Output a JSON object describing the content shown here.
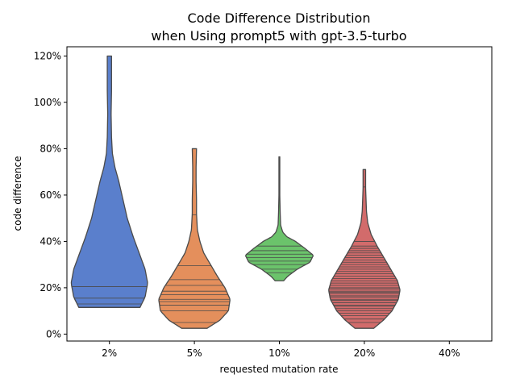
{
  "chart_data": {
    "type": "violin",
    "title_line1": "Code Difference Distribution",
    "title_line2": "when Using prompt5 with gpt-3.5-turbo",
    "xlabel": "requested mutation rate",
    "ylabel": "code difference",
    "categories": [
      "2%",
      "5%",
      "10%",
      "20%",
      "40%"
    ],
    "yticks": [
      "0%",
      "20%",
      "40%",
      "60%",
      "80%",
      "100%",
      "120%"
    ],
    "ylim": [
      -3,
      124
    ],
    "grid": false,
    "series": [
      {
        "category": "2%",
        "color": "#5a7fcc",
        "min": 11.5,
        "max": 120,
        "profile": [
          [
            11.5,
            0.72
          ],
          [
            16,
            0.84
          ],
          [
            22,
            0.9
          ],
          [
            28,
            0.84
          ],
          [
            34,
            0.72
          ],
          [
            42,
            0.56
          ],
          [
            50,
            0.42
          ],
          [
            58,
            0.32
          ],
          [
            66,
            0.22
          ],
          [
            72,
            0.13
          ],
          [
            78,
            0.07
          ],
          [
            85,
            0.05
          ],
          [
            95,
            0.04
          ],
          [
            105,
            0.05
          ],
          [
            112,
            0.05
          ],
          [
            120,
            0.05
          ]
        ],
        "observations": [
          11.5,
          13,
          15.5,
          20.5
        ]
      },
      {
        "category": "5%",
        "color": "#e48f5c",
        "min": 2.5,
        "max": 80,
        "profile": [
          [
            2.5,
            0.3
          ],
          [
            6,
            0.6
          ],
          [
            10,
            0.8
          ],
          [
            15,
            0.84
          ],
          [
            20,
            0.72
          ],
          [
            25,
            0.54
          ],
          [
            30,
            0.38
          ],
          [
            35,
            0.22
          ],
          [
            40,
            0.13
          ],
          [
            45,
            0.07
          ],
          [
            52,
            0.05
          ],
          [
            58,
            0.05
          ],
          [
            66,
            0.04
          ],
          [
            72,
            0.04
          ],
          [
            80,
            0.05
          ]
        ],
        "observations": [
          5,
          10,
          12.5,
          14,
          15,
          17,
          18.5,
          21,
          23.5,
          29.5,
          51.5
        ]
      },
      {
        "category": "10%",
        "color": "#6bc36b",
        "min": 23,
        "max": 76.5,
        "profile": [
          [
            23,
            0.1
          ],
          [
            25,
            0.2
          ],
          [
            28,
            0.42
          ],
          [
            31,
            0.72
          ],
          [
            34,
            0.8
          ],
          [
            37,
            0.6
          ],
          [
            40,
            0.38
          ],
          [
            42,
            0.18
          ],
          [
            44,
            0.08
          ],
          [
            47,
            0.03
          ],
          [
            52,
            0.02
          ],
          [
            60,
            0.01
          ],
          [
            70,
            0.01
          ],
          [
            76.5,
            0.01
          ]
        ],
        "observations": [
          26.5,
          28,
          30,
          31.5,
          33,
          34.5,
          36,
          38
        ]
      },
      {
        "category": "20%",
        "color": "#d26b6b",
        "min": 2.5,
        "max": 71,
        "profile": [
          [
            2.5,
            0.22
          ],
          [
            6,
            0.45
          ],
          [
            10,
            0.65
          ],
          [
            15,
            0.8
          ],
          [
            19,
            0.84
          ],
          [
            23,
            0.78
          ],
          [
            28,
            0.62
          ],
          [
            33,
            0.46
          ],
          [
            38,
            0.3
          ],
          [
            43,
            0.16
          ],
          [
            48,
            0.08
          ],
          [
            53,
            0.05
          ],
          [
            58,
            0.04
          ],
          [
            63,
            0.03
          ],
          [
            67,
            0.03
          ],
          [
            71,
            0.03
          ]
        ],
        "observations": [
          5,
          6.5,
          8,
          9,
          10,
          11,
          12,
          12.5,
          13.5,
          14.5,
          15,
          16,
          16.5,
          17.5,
          18,
          18.5,
          19.5,
          20,
          21,
          22,
          23,
          24,
          25,
          26,
          27,
          28,
          29,
          30,
          31,
          32,
          33,
          34,
          35,
          36,
          37,
          38,
          40,
          63.5
        ]
      }
    ]
  }
}
